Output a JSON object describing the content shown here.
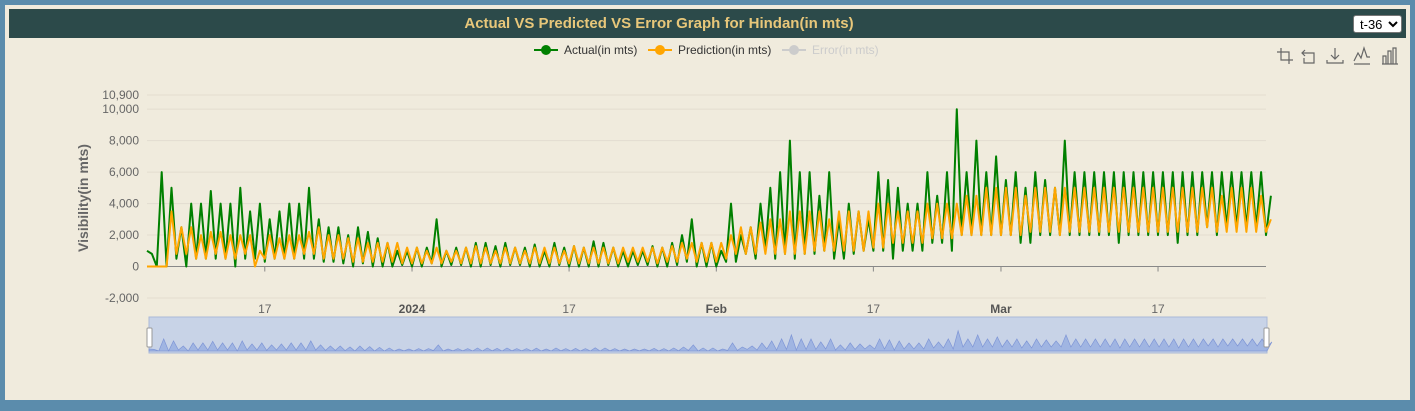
{
  "header": {
    "title": "Actual VS Predicted VS Error Graph for Hindan(in mts)"
  },
  "selector": {
    "value": "t-36",
    "options": [
      "t-36"
    ]
  },
  "toolbox": {
    "icons": [
      "zoom-icon",
      "zoom-reset-icon",
      "download-icon",
      "line-chart-icon",
      "bar-chart-icon"
    ]
  },
  "colors": {
    "actual": "#008000",
    "prediction": "#ffa500",
    "error": "#cccccc",
    "slider": "#8fa8e0"
  },
  "chart_data": {
    "type": "line",
    "ylabel": "Visibility(in mts)",
    "ylim": [
      -2000,
      10900
    ],
    "yticks": [
      -2000,
      0,
      2000,
      4000,
      6000,
      8000,
      10000,
      10900
    ],
    "ytick_labels": [
      "-2,000",
      "0",
      "2,000",
      "4,000",
      "6,000",
      "8,000",
      "10,000",
      "10,900"
    ],
    "xlim": [
      "2023-12-05",
      "2024-03-28"
    ],
    "xticks": [
      {
        "date": "2023-12-17",
        "label": "17",
        "bold": false
      },
      {
        "date": "2024-01-01",
        "label": "2024",
        "bold": true
      },
      {
        "date": "2024-01-17",
        "label": "17",
        "bold": false
      },
      {
        "date": "2024-02-01",
        "label": "Feb",
        "bold": true
      },
      {
        "date": "2024-02-17",
        "label": "17",
        "bold": false
      },
      {
        "date": "2024-03-01",
        "label": "Mar",
        "bold": true
      },
      {
        "date": "2024-03-17",
        "label": "17",
        "bold": false
      }
    ],
    "legend_position": "top-center",
    "series": [
      {
        "name": "Actual(in mts)",
        "active": true,
        "x": [
          "2023-12-05",
          "2023-12-06",
          "2023-12-07",
          "2023-12-08",
          "2023-12-09",
          "2023-12-10",
          "2023-12-11",
          "2023-12-12",
          "2023-12-13",
          "2023-12-14",
          "2023-12-15",
          "2023-12-16",
          "2023-12-17",
          "2023-12-18",
          "2023-12-19",
          "2023-12-20",
          "2023-12-21",
          "2023-12-22",
          "2023-12-23",
          "2023-12-24",
          "2023-12-25",
          "2023-12-26",
          "2023-12-27",
          "2023-12-28",
          "2023-12-29",
          "2023-12-30",
          "2023-12-31",
          "2024-01-01",
          "2024-01-02",
          "2024-01-03",
          "2024-01-04",
          "2024-01-05",
          "2024-01-06",
          "2024-01-07",
          "2024-01-08",
          "2024-01-09",
          "2024-01-10",
          "2024-01-11",
          "2024-01-12",
          "2024-01-13",
          "2024-01-14",
          "2024-01-15",
          "2024-01-16",
          "2024-01-17",
          "2024-01-18",
          "2024-01-19",
          "2024-01-20",
          "2024-01-21",
          "2024-01-22",
          "2024-01-23",
          "2024-01-24",
          "2024-01-25",
          "2024-01-26",
          "2024-01-27",
          "2024-01-28",
          "2024-01-29",
          "2024-01-30",
          "2024-01-31",
          "2024-02-01",
          "2024-02-02",
          "2024-02-03",
          "2024-02-04",
          "2024-02-05",
          "2024-02-06",
          "2024-02-07",
          "2024-02-08",
          "2024-02-09",
          "2024-02-10",
          "2024-02-11",
          "2024-02-12",
          "2024-02-13",
          "2024-02-14",
          "2024-02-15",
          "2024-02-16",
          "2024-02-17",
          "2024-02-18",
          "2024-02-19",
          "2024-02-20",
          "2024-02-21",
          "2024-02-22",
          "2024-02-23",
          "2024-02-24",
          "2024-02-25",
          "2024-02-26",
          "2024-02-27",
          "2024-02-28",
          "2024-02-29",
          "2024-03-01",
          "2024-03-02",
          "2024-03-03",
          "2024-03-04",
          "2024-03-05",
          "2024-03-06",
          "2024-03-07",
          "2024-03-08",
          "2024-03-09",
          "2024-03-10",
          "2024-03-11",
          "2024-03-12",
          "2024-03-13",
          "2024-03-14",
          "2024-03-15",
          "2024-03-16",
          "2024-03-17",
          "2024-03-18",
          "2024-03-19",
          "2024-03-20",
          "2024-03-21",
          "2024-03-22",
          "2024-03-23",
          "2024-03-24",
          "2024-03-25",
          "2024-03-26",
          "2024-03-27",
          "2024-03-28"
        ],
        "peaks": [
          800,
          6000,
          5000,
          2500,
          4000,
          4000,
          4800,
          4000,
          4000,
          5000,
          3500,
          4000,
          3000,
          3500,
          4000,
          4000,
          5000,
          3000,
          2500,
          2500,
          2000,
          2500,
          2200,
          1800,
          1500,
          1000,
          1000,
          1200,
          1200,
          3000,
          1000,
          1200,
          1200,
          1500,
          1500,
          1300,
          1500,
          1200,
          1200,
          1400,
          1000,
          1500,
          1200,
          1300,
          1200,
          1600,
          1500,
          1200,
          1000,
          1000,
          1000,
          1300,
          1200,
          1500,
          2000,
          3000,
          1500,
          1500,
          1000,
          4000,
          2000,
          2500,
          4000,
          5000,
          6000,
          8000,
          6000,
          6000,
          4500,
          6000,
          3000,
          4000,
          3500,
          3000,
          6000,
          5500,
          5000,
          4000,
          4000,
          6000,
          4500,
          6000,
          10000,
          6000,
          8000,
          6000,
          7000,
          5500,
          6000,
          5000,
          6000,
          5500,
          5000,
          8000,
          6000,
          6000,
          6000,
          6000,
          6000,
          6000,
          6000,
          6000,
          6000,
          6000,
          6000,
          6000,
          6000,
          6000,
          6000,
          6000,
          6000,
          6000,
          6000,
          6000,
          4500
        ],
        "troughs": [
          1000,
          0,
          0,
          500,
          0,
          500,
          500,
          500,
          500,
          0,
          500,
          500,
          300,
          500,
          500,
          500,
          500,
          500,
          300,
          300,
          200,
          0,
          200,
          0,
          0,
          0,
          100,
          0,
          0,
          200,
          0,
          100,
          100,
          0,
          0,
          100,
          0,
          100,
          100,
          0,
          0,
          0,
          100,
          0,
          0,
          0,
          0,
          100,
          0,
          0,
          100,
          100,
          0,
          0,
          100,
          300,
          0,
          0,
          0,
          300,
          300,
          800,
          500,
          1000,
          500,
          800,
          500,
          800,
          800,
          1000,
          500,
          500,
          800,
          1000,
          1000,
          1000,
          500,
          1000,
          1000,
          1000,
          1500,
          1500,
          1000,
          2000,
          2000,
          2000,
          2000,
          2000,
          2000,
          1500,
          1500,
          2000,
          2000,
          2000,
          2000,
          2000,
          2000,
          2000,
          2000,
          1500,
          2000,
          2000,
          2000,
          2000,
          2000,
          1500,
          2000,
          2000,
          2500,
          2000,
          2500,
          2500,
          2500,
          2500,
          2000
        ]
      },
      {
        "name": "Prediction(in mts)",
        "active": true,
        "peaks": [
          0,
          0,
          3500,
          2500,
          2500,
          2000,
          2200,
          2200,
          2000,
          2000,
          2000,
          1000,
          2000,
          1800,
          2000,
          2000,
          2200,
          2500,
          2000,
          2000,
          1800,
          1800,
          1500,
          1500,
          1500,
          1500,
          1200,
          1200,
          1000,
          1200,
          1000,
          1000,
          1200,
          1300,
          1200,
          1000,
          1200,
          1200,
          1000,
          1200,
          1200,
          1200,
          1000,
          1300,
          1200,
          1200,
          1200,
          1200,
          1200,
          1200,
          1200,
          1200,
          1200,
          1300,
          1500,
          1500,
          1500,
          1500,
          1500,
          2000,
          2500,
          2500,
          2800,
          3000,
          3000,
          3500,
          3500,
          3500,
          3500,
          3000,
          3500,
          3500,
          3500,
          3500,
          4000,
          4000,
          3500,
          3500,
          3500,
          4000,
          4000,
          4000,
          4000,
          4500,
          4500,
          5000,
          5000,
          5000,
          5000,
          4500,
          5000,
          5000,
          5000,
          5000,
          5000,
          5000,
          5000,
          5000,
          5000,
          5000,
          5000,
          5000,
          5000,
          5000,
          5000,
          5000,
          5000,
          5000,
          5000,
          4500,
          5000,
          5000,
          5000,
          4500,
          3000
        ],
        "troughs": [
          0,
          0,
          0,
          800,
          800,
          500,
          500,
          800,
          500,
          500,
          800,
          0,
          500,
          500,
          500,
          500,
          800,
          800,
          500,
          500,
          500,
          300,
          300,
          300,
          300,
          300,
          200,
          200,
          200,
          200,
          200,
          300,
          200,
          200,
          200,
          200,
          200,
          200,
          200,
          200,
          200,
          200,
          200,
          200,
          200,
          200,
          200,
          200,
          200,
          300,
          300,
          300,
          200,
          300,
          300,
          500,
          300,
          300,
          300,
          500,
          800,
          800,
          800,
          800,
          800,
          800,
          800,
          800,
          1000,
          1000,
          1000,
          1000,
          1000,
          1000,
          1200,
          1200,
          1500,
          1500,
          1500,
          1500,
          1800,
          1800,
          1800,
          2000,
          2000,
          2000,
          2000,
          2000,
          2000,
          2000,
          2200,
          2200,
          2200,
          2000,
          2200,
          2200,
          2200,
          2200,
          2200,
          2200,
          2200,
          2200,
          2200,
          2200,
          2200,
          2200,
          2200,
          2200,
          2500,
          2200,
          2200,
          2200,
          2200,
          2200,
          2200
        ]
      },
      {
        "name": "Error(in mts)",
        "active": false
      }
    ]
  }
}
